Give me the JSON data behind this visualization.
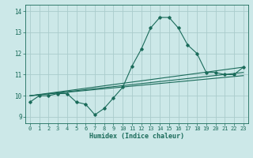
{
  "xlabel": "Humidex (Indice chaleur)",
  "background_color": "#cce8e8",
  "grid_color": "#aacccc",
  "line_color": "#1a6b5a",
  "xlim": [
    -0.5,
    23.5
  ],
  "ylim": [
    8.7,
    14.3
  ],
  "yticks": [
    9,
    10,
    11,
    12,
    13,
    14
  ],
  "xticks": [
    0,
    1,
    2,
    3,
    4,
    5,
    6,
    7,
    8,
    9,
    10,
    11,
    12,
    13,
    14,
    15,
    16,
    17,
    18,
    19,
    20,
    21,
    22,
    23
  ],
  "series1_x": [
    0,
    1,
    2,
    3,
    4,
    5,
    6,
    7,
    8,
    9,
    10,
    11,
    12,
    13,
    14,
    15,
    16,
    17,
    18,
    19,
    20,
    21,
    22,
    23
  ],
  "series1_y": [
    9.7,
    10.0,
    10.0,
    10.1,
    10.1,
    9.7,
    9.6,
    9.1,
    9.4,
    9.9,
    10.4,
    11.4,
    12.2,
    13.2,
    13.7,
    13.7,
    13.2,
    12.4,
    12.0,
    11.1,
    11.1,
    11.0,
    11.0,
    11.35
  ],
  "series2_x": [
    0,
    23
  ],
  "series2_y": [
    10.0,
    11.35
  ],
  "series3_x": [
    0,
    23
  ],
  "series3_y": [
    10.0,
    11.1
  ],
  "series4_x": [
    0,
    23
  ],
  "series4_y": [
    10.0,
    10.95
  ],
  "tick_fontsize": 5.0,
  "xlabel_fontsize": 6.0
}
